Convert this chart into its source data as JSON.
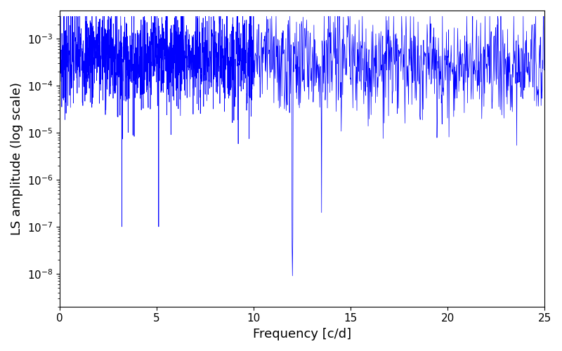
{
  "title": "",
  "xlabel": "Frequency [c/d]",
  "ylabel": "LS amplitude (log scale)",
  "line_color": "blue",
  "line_width": 0.5,
  "xlim": [
    0,
    25
  ],
  "ylim_log": [
    -8.7,
    -2.4
  ],
  "x_ticks": [
    0,
    5,
    10,
    15,
    20,
    25
  ],
  "figsize": [
    8.0,
    5.0
  ],
  "dpi": 100,
  "n_points_low": 1200,
  "n_points_high": 800,
  "seed": 7,
  "background_color": "#ffffff"
}
